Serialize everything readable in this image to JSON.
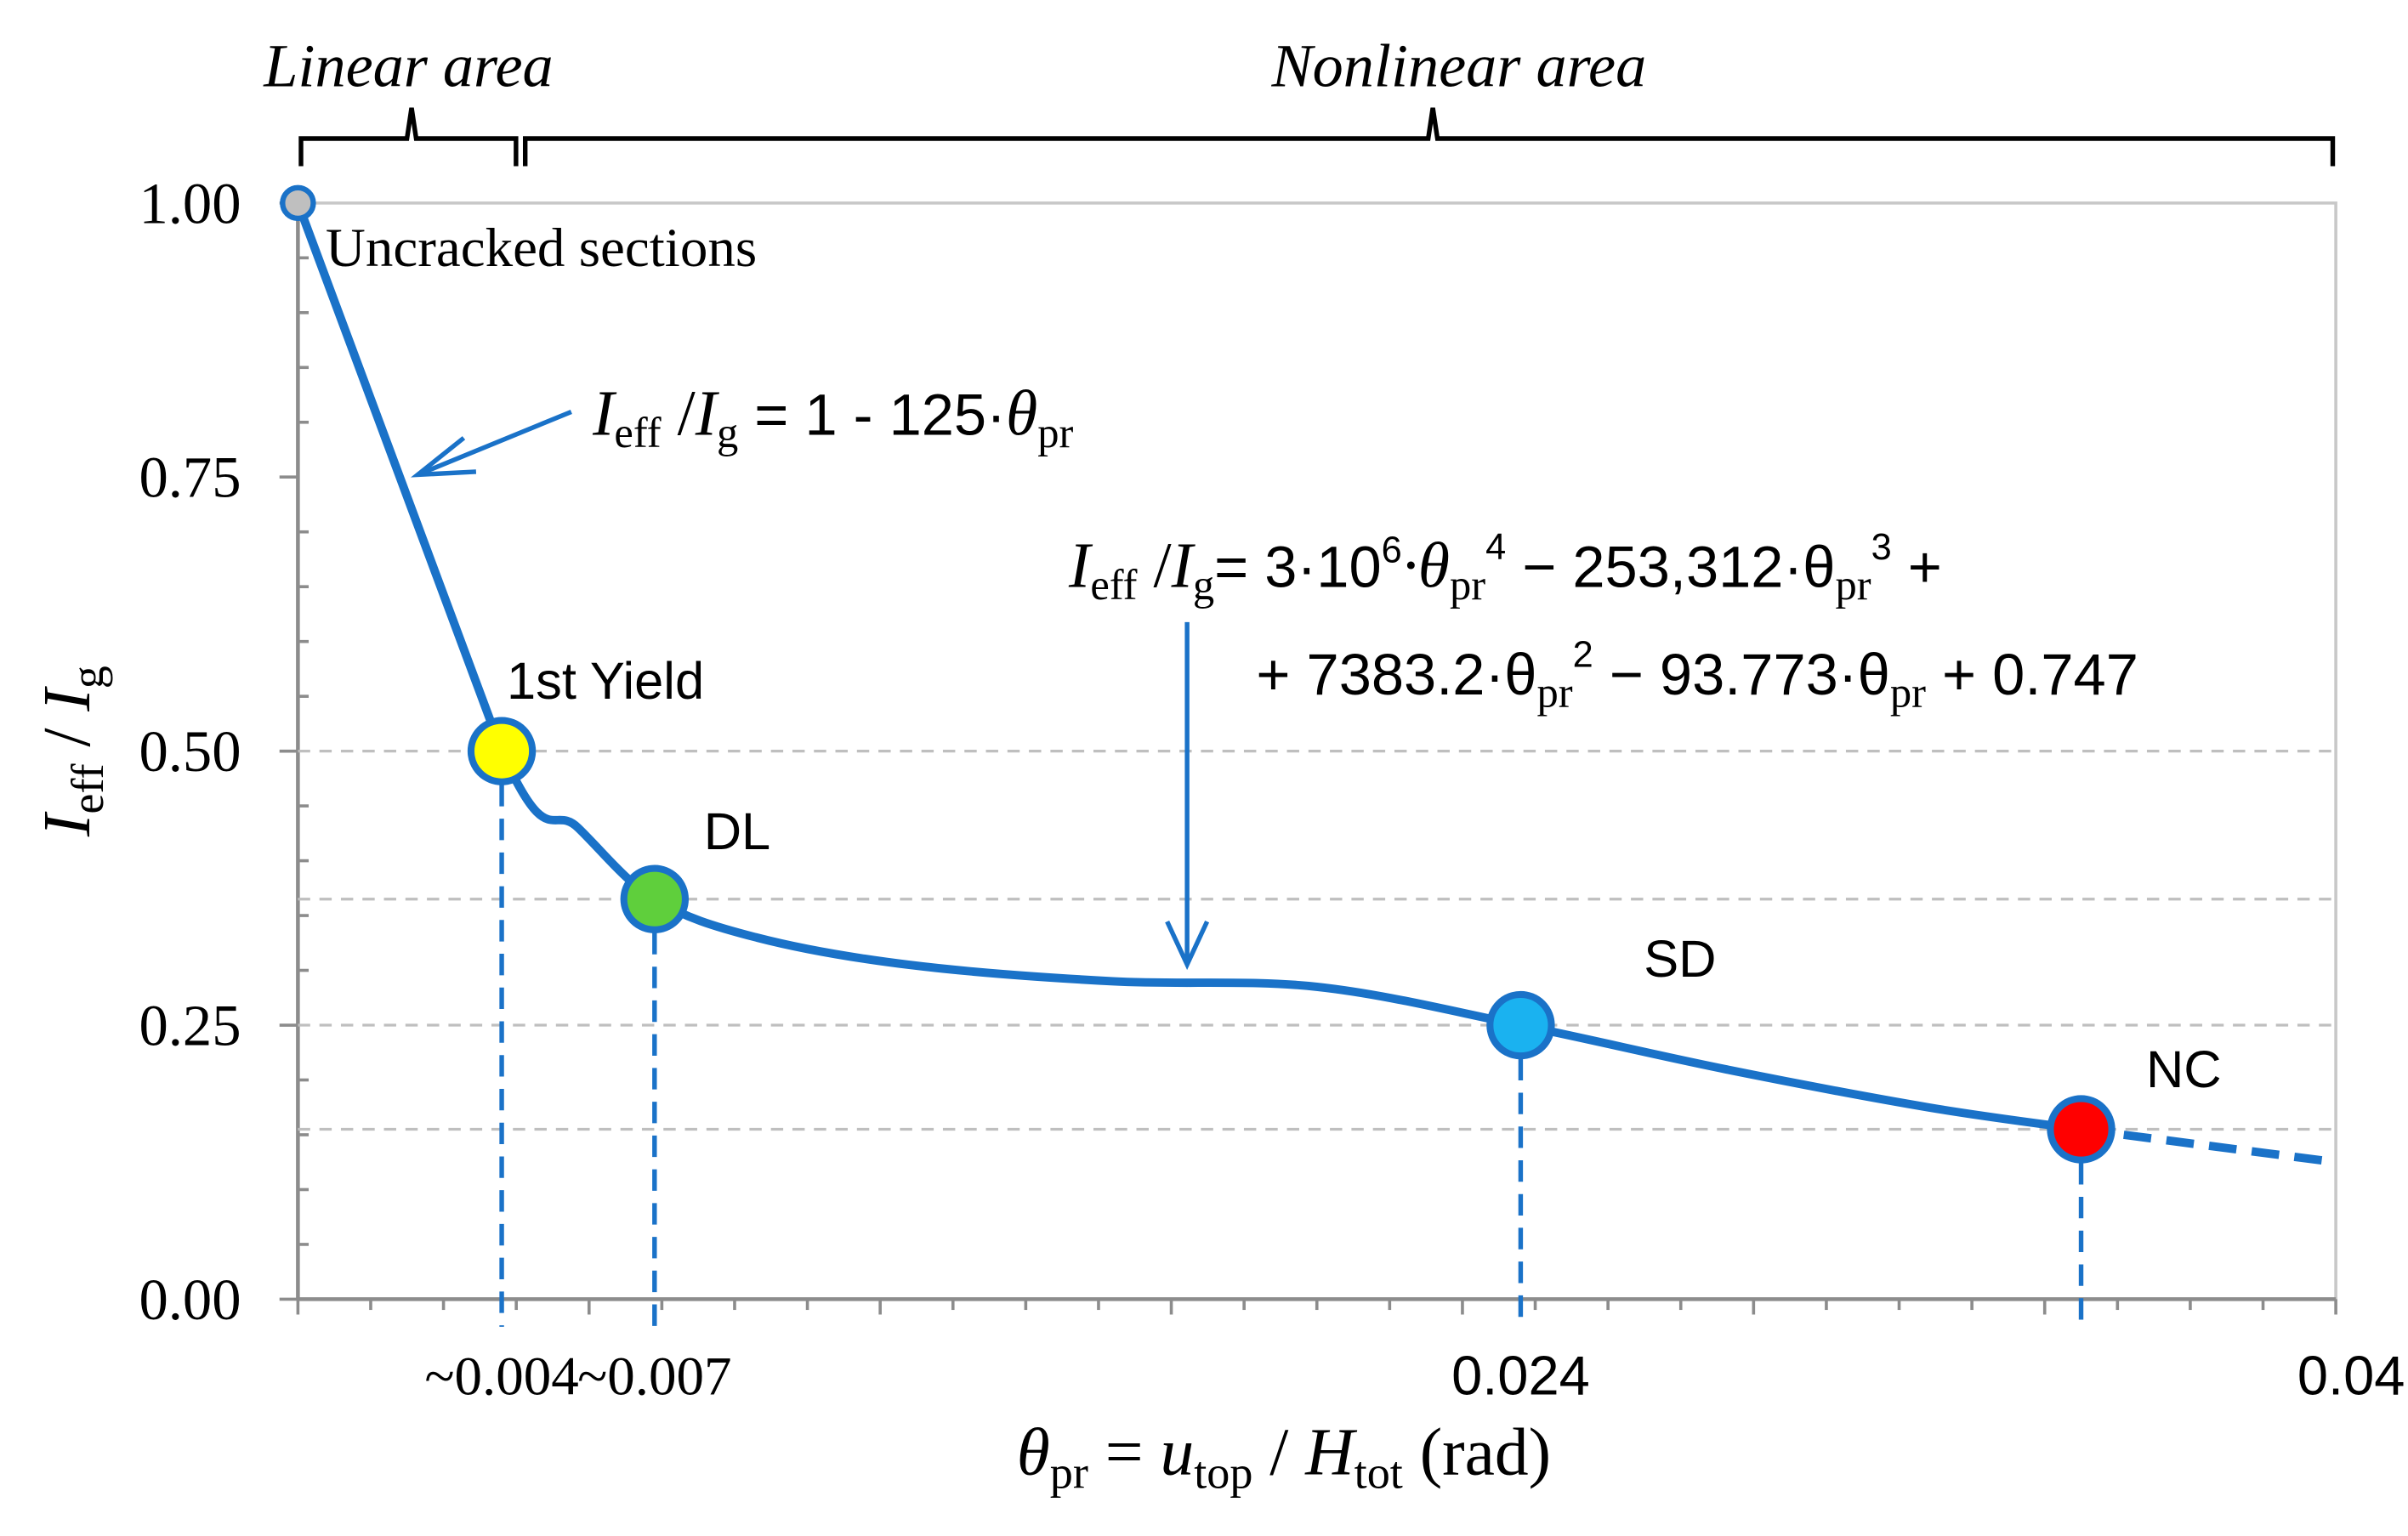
{
  "chart_data": {
    "type": "line",
    "ylim": [
      0,
      1.0
    ],
    "xlim": [
      0,
      0.04
    ],
    "y_ticks": [
      "1.00",
      "0.75",
      "0.50",
      "0.25",
      "0.00"
    ],
    "x_ticks": [
      {
        "x": 0.004,
        "label": "~0.004"
      },
      {
        "x": 0.007,
        "label": "~0.007"
      },
      {
        "x": 0.024,
        "label": "0.024"
      },
      {
        "x": 0.04,
        "label": "0.04"
      }
    ],
    "grid": "horizontal dashed at marked points",
    "curve": {
      "x": [
        0,
        0.004,
        0.0055,
        0.007,
        0.009,
        0.012,
        0.016,
        0.02,
        0.024,
        0.028,
        0.032,
        0.035
      ],
      "y": [
        1.0,
        0.5,
        0.43,
        0.365,
        0.33,
        0.305,
        0.29,
        0.285,
        0.25,
        0.21,
        0.175,
        0.155
      ]
    },
    "extension": {
      "x": [
        0.035,
        0.04
      ],
      "y": [
        0.155,
        0.125
      ]
    },
    "points": [
      {
        "label": "Uncracked sections",
        "x": 0,
        "y": 1.0,
        "color": "#bfbfbf"
      },
      {
        "label": "1st Yield",
        "x": 0.004,
        "y": 0.5,
        "color": "#ffff00"
      },
      {
        "label": "DL",
        "x": 0.007,
        "y": 0.365,
        "color": "#5fcf3c"
      },
      {
        "label": "SD",
        "x": 0.024,
        "y": 0.25,
        "color": "#1ab2f0"
      },
      {
        "label": "NC",
        "x": 0.035,
        "y": 0.155,
        "color": "#ff0000"
      }
    ],
    "regions": [
      {
        "label": "Linear area",
        "x_range": [
          0,
          0.004
        ]
      },
      {
        "label": "Nonlinear area",
        "x_range": [
          0.004,
          0.04
        ]
      }
    ],
    "annotations": {
      "linear_eq": {
        "lhs_I": "I",
        "lhs_sub1": "eff",
        "slash": " /",
        "lhs_I2": "I",
        "lhs_sub2": "g",
        "rhs": " = 1 - 125·",
        "theta": "θ",
        "theta_sub": "pr"
      },
      "nonlinear_eq_line1": "= 3·10",
      "nonlinear_eq_exp6": "6",
      "nonlinear_eq_line1b": "·θ",
      "nonlinear_eq_line1c": " − 253,312·θ",
      "nonlinear_eq_line1d": " +",
      "nonlinear_eq_line2a": "+ 7383.2·θ",
      "nonlinear_eq_line2b": " − 93.773·θ",
      "nonlinear_eq_line2c": " + 0.747",
      "sub_pr": "pr",
      "exp4": "4",
      "exp3": "3",
      "exp2": "2"
    },
    "ylabel": {
      "I": "I",
      "sub1": "eff",
      "sep": " / ",
      "I2": "I",
      "sub2": "g"
    },
    "xlabel": {
      "theta": "θ",
      "sub": "pr",
      "eq": " = ",
      "u": "u",
      "usub": "top",
      "sep": " / ",
      "H": "H",
      "Hsub": "tot",
      "unit": " (rad)"
    },
    "colors": {
      "curve": "#1a72c8",
      "grid": "#bfbfbf",
      "axis": "#999999",
      "text": "#000000"
    }
  }
}
